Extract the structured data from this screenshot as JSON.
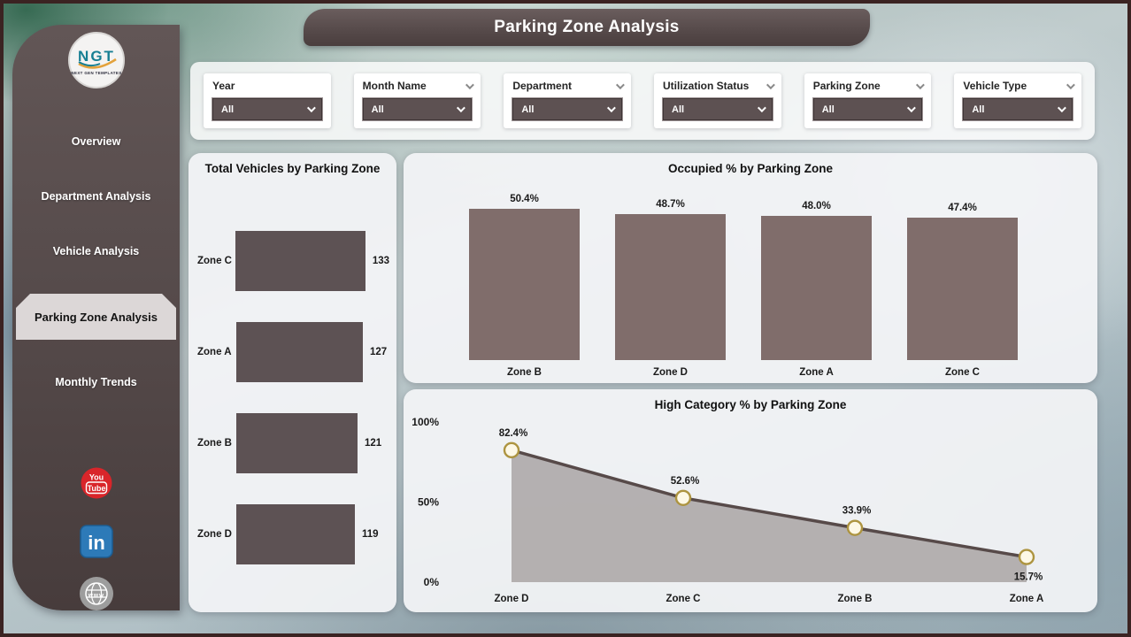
{
  "header": {
    "title": "Parking Zone Analysis"
  },
  "sidebar": {
    "logo": {
      "text": "NGT",
      "subtext": "NEXT GEN TEMPLATES"
    },
    "items": [
      {
        "label": "Overview",
        "active": false
      },
      {
        "label": "Department Analysis",
        "active": false
      },
      {
        "label": "Vehicle Analysis",
        "active": false
      },
      {
        "label": "Parking Zone Analysis",
        "active": true
      },
      {
        "label": "Monthly Trends",
        "active": false
      }
    ],
    "social": [
      {
        "name": "youtube",
        "line1": "You",
        "line2": "Tube",
        "color": "#d9252a"
      },
      {
        "name": "linkedin",
        "label": "in",
        "color": "#2d7ab8"
      },
      {
        "name": "website",
        "label": "www",
        "color": "#9d9d9d"
      }
    ]
  },
  "filters": [
    {
      "label": "Year",
      "value": "All",
      "label_chevron": false
    },
    {
      "label": "Month Name",
      "value": "All",
      "label_chevron": true
    },
    {
      "label": "Department",
      "value": "All",
      "label_chevron": true
    },
    {
      "label": "Utilization Status",
      "value": "All",
      "label_chevron": true
    },
    {
      "label": "Parking Zone",
      "value": "All",
      "label_chevron": true
    },
    {
      "label": "Vehicle Type",
      "value": "All",
      "label_chevron": true
    }
  ],
  "chart_data": [
    {
      "type": "bar",
      "orientation": "horizontal",
      "title": "Total Vehicles by Parking Zone",
      "categories": [
        "Zone C",
        "Zone A",
        "Zone B",
        "Zone D"
      ],
      "values": [
        133,
        127,
        121,
        119
      ],
      "labels": [
        "133",
        "127",
        "121",
        "119"
      ],
      "xlim": [
        0,
        140
      ],
      "bar_color": "#5d5254"
    },
    {
      "type": "bar",
      "orientation": "vertical",
      "title": "Occupied % by Parking Zone",
      "categories": [
        "Zone B",
        "Zone D",
        "Zone A",
        "Zone C"
      ],
      "values": [
        50.4,
        48.7,
        48.0,
        47.4
      ],
      "labels": [
        "50.4%",
        "48.7%",
        "48.0%",
        "47.4%"
      ],
      "ylim": [
        0,
        58
      ],
      "bar_color": "#806d6b"
    },
    {
      "type": "area",
      "title": "High Category % by Parking Zone",
      "categories": [
        "Zone D",
        "Zone C",
        "Zone B",
        "Zone A"
      ],
      "values": [
        82.4,
        52.6,
        33.9,
        15.7
      ],
      "labels": [
        "82.4%",
        "52.6%",
        "33.9%",
        "15.7%"
      ],
      "ylim": [
        0,
        100
      ],
      "yticks": [
        {
          "label": "100%",
          "value": 100
        },
        {
          "label": "50%",
          "value": 50
        },
        {
          "label": "0%",
          "value": 0
        }
      ],
      "line_color": "#574a49",
      "fill_color": "#a9a5a4",
      "marker_fill": "#fdf8e6",
      "marker_stroke": "#ad9440"
    }
  ]
}
